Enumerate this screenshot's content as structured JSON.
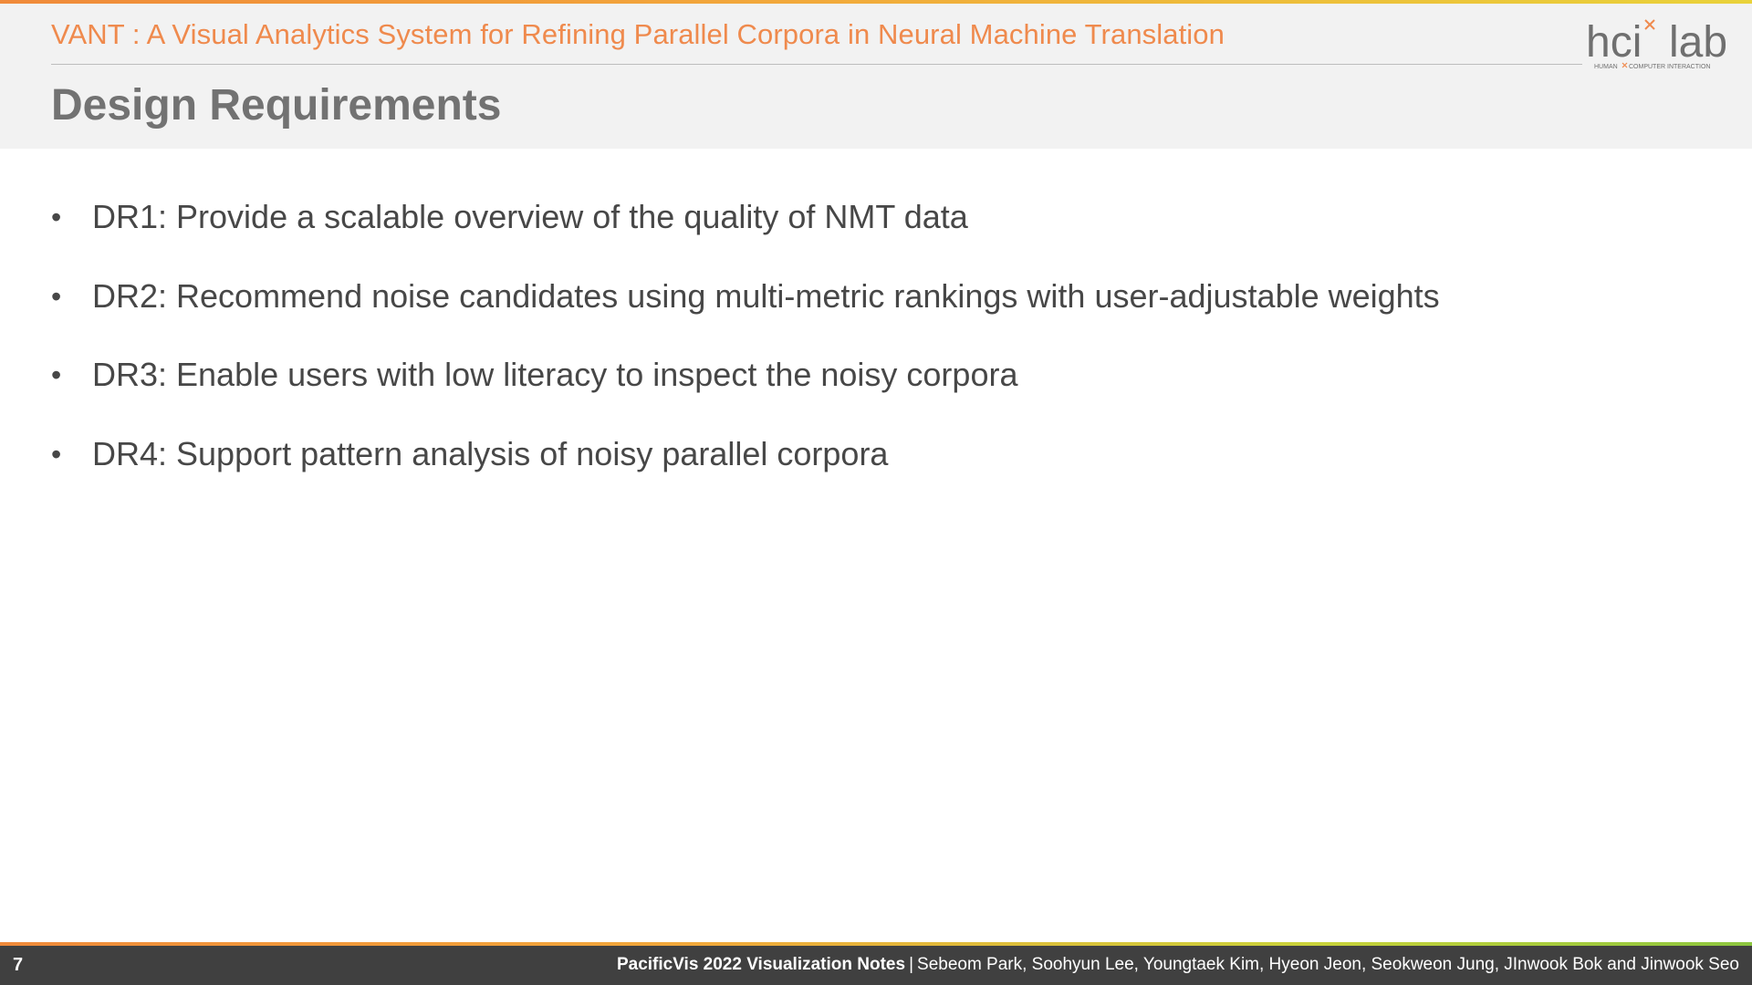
{
  "header": {
    "deck_title": "VANT : A Visual Analytics System for Refining Parallel Corpora in Neural Machine Translation",
    "page_title": "Design Requirements",
    "logo": {
      "text_hci": "hci",
      "text_lab": "lab",
      "tagline_left": "HUMAN",
      "tagline_right": "COMPUTER INTERACTION",
      "accent_color": "#ef8a4d",
      "text_color": "#6f6f6f"
    }
  },
  "bullets": [
    {
      "marker": "•",
      "text": "DR1: Provide a scalable overview of the quality of NMT data"
    },
    {
      "marker": "•",
      "text": "DR2: Recommend noise candidates using multi-metric rankings with user-adjustable weights"
    },
    {
      "marker": "•",
      "text": "DR3: Enable users with low literacy to inspect the noisy corpora"
    },
    {
      "marker": "•",
      "text": "DR4: Support pattern analysis of noisy parallel corpora"
    }
  ],
  "footer": {
    "page_number": "7",
    "venue": "PacificVis 2022 Visualization Notes",
    "separator": "|",
    "authors": "Sebeom Park, Soohyun Lee, Youngtaek Kim, Hyeon Jeon, Seokweon Jung, JInwook Bok and Jinwook Seo"
  },
  "colors": {
    "accent_orange": "#ef8a4d",
    "title_gray": "#727272",
    "body_text": "#474747",
    "header_bg": "#f2f2f2",
    "footer_bg": "#404040"
  }
}
